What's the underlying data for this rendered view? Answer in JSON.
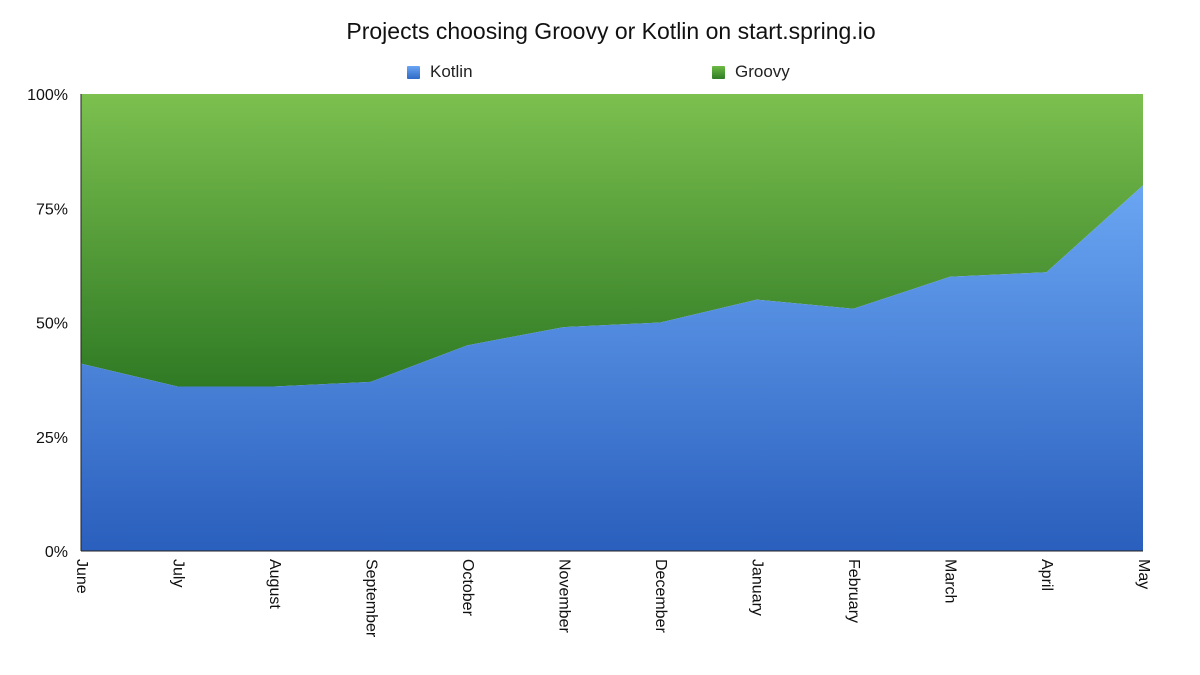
{
  "chart_data": {
    "type": "area",
    "stacked": true,
    "percent": true,
    "title": "Projects choosing Groovy or Kotlin on start.spring.io",
    "categories": [
      "June",
      "July",
      "August",
      "September",
      "October",
      "November",
      "December",
      "January",
      "February",
      "March",
      "April",
      "May"
    ],
    "series": [
      {
        "name": "Kotlin",
        "values": [
          41,
          36,
          36,
          37,
          45,
          49,
          50,
          55,
          53,
          60,
          61,
          80
        ],
        "color_top": "#6aa6f3",
        "color_bottom": "#2a5fbd"
      },
      {
        "name": "Groovy",
        "values": [
          59,
          64,
          64,
          63,
          55,
          51,
          50,
          45,
          47,
          40,
          39,
          20
        ],
        "color_top": "#7cc04f",
        "color_bottom": "#2f7a24"
      }
    ],
    "y_ticks": [
      "0%",
      "25%",
      "50%",
      "75%",
      "100%"
    ],
    "ylim": [
      0,
      100
    ],
    "legend_position": "top",
    "grid": false
  }
}
